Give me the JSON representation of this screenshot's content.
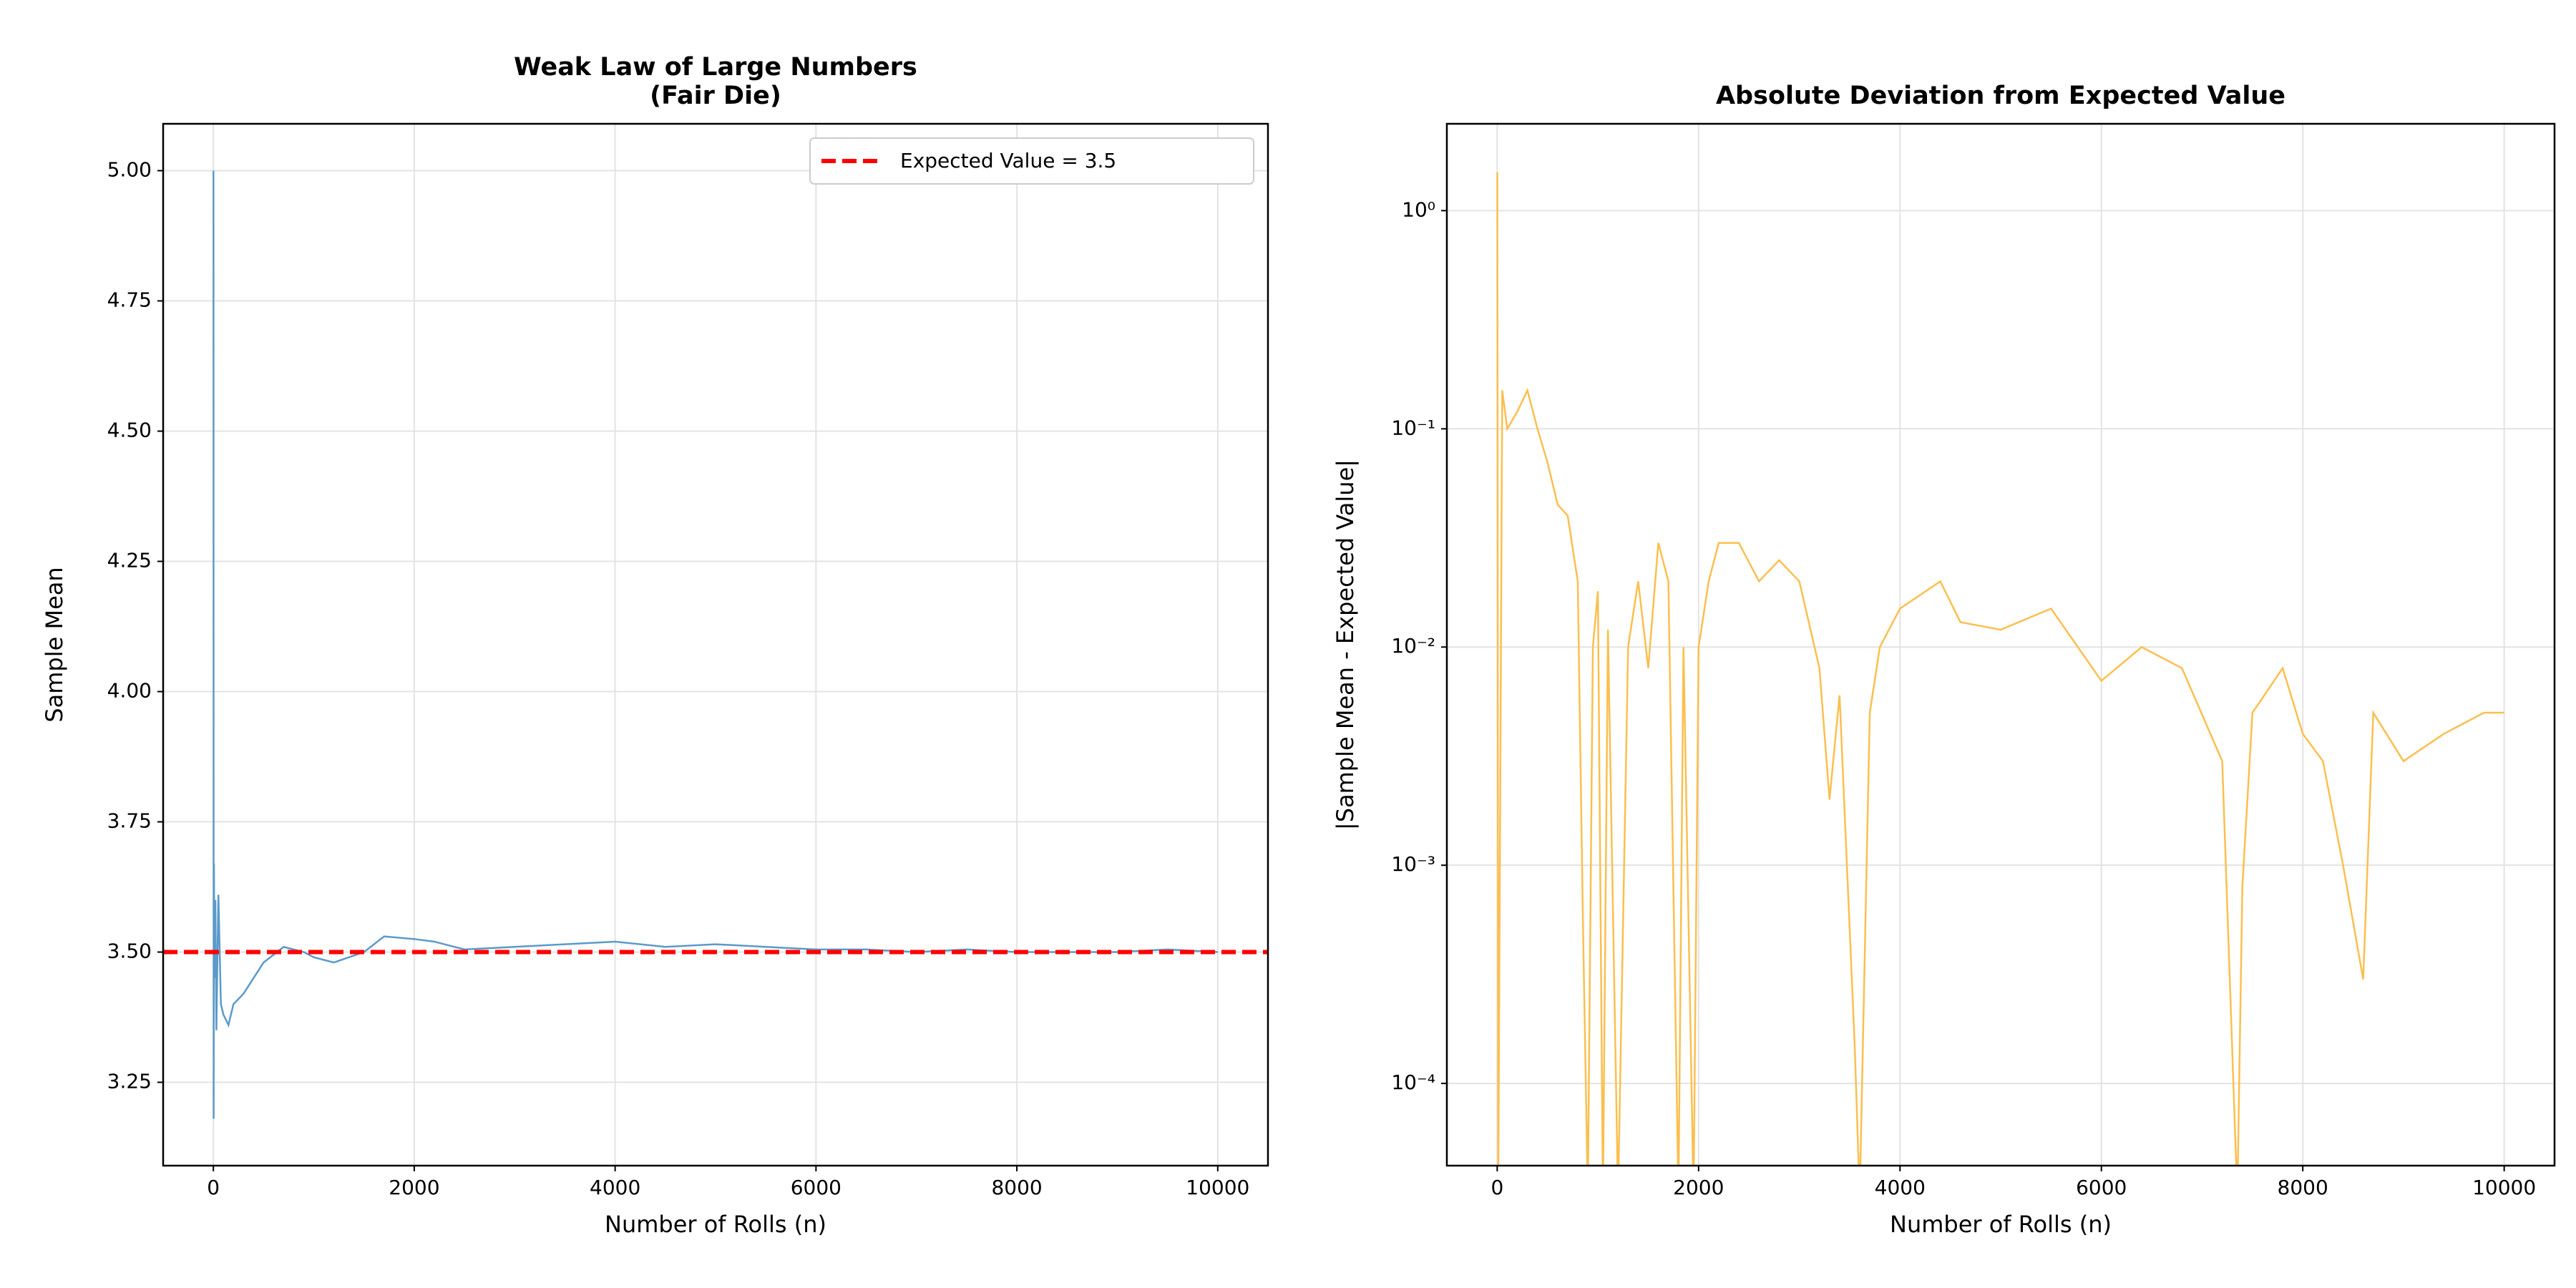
{
  "chart_data": [
    {
      "type": "line",
      "title": [
        "Weak Law of Large Numbers",
        "(Fair Die)"
      ],
      "xlabel": "Number of Rolls (n)",
      "ylabel": "Sample Mean",
      "xlim": [
        -500,
        10500
      ],
      "ylim": [
        3.09,
        5.09
      ],
      "xticks": [
        0,
        2000,
        4000,
        6000,
        8000,
        10000
      ],
      "yticks": [
        3.25,
        {
          "value": 3.5,
          "label": "3.50"
        },
        3.75,
        {
          "value": 4,
          "label": "4.00"
        },
        4.25,
        {
          "value": 4.5,
          "label": "4.50"
        },
        4.75,
        {
          "value": 5,
          "label": "5.00"
        }
      ],
      "grid": true,
      "legend": "upper right",
      "x": [
        1,
        3,
        6,
        10,
        20,
        30,
        50,
        75,
        100,
        150,
        200,
        300,
        400,
        500,
        700,
        900,
        1000,
        1200,
        1500,
        1700,
        2000,
        2200,
        2500,
        3000,
        3500,
        4000,
        4500,
        5000,
        5500,
        6000,
        6500,
        7000,
        7500,
        8000,
        8500,
        9000,
        9500,
        10000
      ],
      "series": [
        {
          "color": "#5b9ac9",
          "values": [
            5.0,
            3.18,
            3.67,
            3.45,
            3.6,
            3.35,
            3.61,
            3.4,
            3.38,
            3.36,
            3.4,
            3.42,
            3.45,
            3.48,
            3.51,
            3.5,
            3.49,
            3.48,
            3.5,
            3.53,
            3.525,
            3.52,
            3.505,
            3.51,
            3.515,
            3.52,
            3.51,
            3.515,
            3.51,
            3.505,
            3.505,
            3.5,
            3.505,
            3.5,
            3.5,
            3.5,
            3.505,
            3.5
          ]
        }
      ],
      "hline": {
        "name": "Expected Value = 3.5",
        "value": 3.5,
        "color": "#ff0000"
      }
    },
    {
      "type": "line",
      "title": [
        "Absolute Deviation from Expected Value"
      ],
      "xlabel": "Number of Rolls (n)",
      "ylabel": "|Sample Mean - Expected Value|",
      "xlim": [
        -500,
        10500
      ],
      "ylim": [
        4.2e-05,
        2.5
      ],
      "yscale": "log",
      "xticks": [
        0,
        2000,
        4000,
        6000,
        8000,
        10000
      ],
      "yticks": [
        {
          "value": 0.0001,
          "label": "10⁻⁴"
        },
        {
          "value": 0.001,
          "label": "10⁻³"
        },
        {
          "value": 0.01,
          "label": "10⁻²"
        },
        {
          "value": 0.1,
          "label": "10⁻¹"
        },
        {
          "value": 1,
          "label": "10⁰"
        }
      ],
      "grid": true,
      "x": [
        1,
        3,
        10,
        50,
        100,
        200,
        300,
        400,
        500,
        600,
        700,
        800,
        850,
        900,
        950,
        1000,
        1050,
        1100,
        1200,
        1300,
        1400,
        1500,
        1600,
        1700,
        1800,
        1850,
        1950,
        2000,
        2100,
        2200,
        2400,
        2600,
        2800,
        3000,
        3200,
        3300,
        3400,
        3550,
        3600,
        3700,
        3800,
        4000,
        4400,
        4600,
        5000,
        5500,
        6000,
        6400,
        6800,
        7200,
        7350,
        7400,
        7500,
        7800,
        8000,
        8200,
        8400,
        8600,
        8700,
        9000,
        9400,
        9800,
        10000
      ],
      "series": [
        {
          "color": "#fbbf4f",
          "values": [
            1.5,
            0.32,
            3e-05,
            0.15,
            0.1,
            0.12,
            0.15,
            0.1,
            0.07,
            0.045,
            0.04,
            0.02,
            0.0006,
            3e-05,
            0.01,
            0.018,
            3e-05,
            0.012,
            3e-05,
            0.01,
            0.02,
            0.008,
            0.03,
            0.02,
            3e-05,
            0.01,
            3e-05,
            0.01,
            0.02,
            0.03,
            0.03,
            0.02,
            0.025,
            0.02,
            0.008,
            0.002,
            0.006,
            0.00015,
            3e-05,
            0.005,
            0.01,
            0.015,
            0.02,
            0.013,
            0.012,
            0.015,
            0.007,
            0.01,
            0.008,
            0.003,
            3e-05,
            0.0008,
            0.005,
            0.008,
            0.004,
            0.003,
            0.001,
            0.0003,
            0.005,
            0.003,
            0.004,
            0.005,
            0.005
          ]
        }
      ]
    }
  ]
}
